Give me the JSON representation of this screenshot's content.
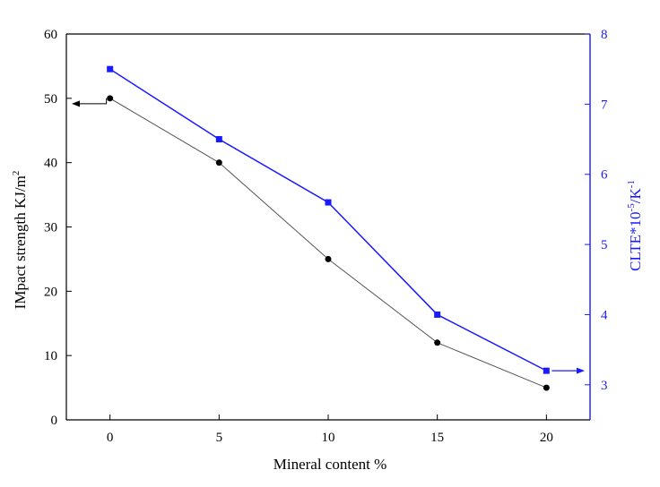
{
  "chart_data": {
    "type": "line",
    "xlabel": "Mineral content %",
    "x_ticks": [
      "0",
      "5",
      "10",
      "15",
      "20"
    ],
    "xlim": [
      -2,
      22
    ],
    "left_axis": {
      "label_main": "IMpact strength KJ/m",
      "label_sup": "2",
      "ylim": [
        0,
        60
      ],
      "ticks": [
        0,
        10,
        20,
        30,
        40,
        50,
        60
      ]
    },
    "right_axis": {
      "label_main": "CLTE*10",
      "label_sup1": "-5",
      "label_mid": "/K",
      "label_sup2": "-1",
      "ylim": [
        2.5,
        8
      ],
      "ticks": [
        3,
        4,
        5,
        6,
        7,
        8
      ]
    },
    "series": [
      {
        "axis": "left",
        "x": [
          0,
          5,
          10,
          15,
          20
        ],
        "values": [
          50,
          40,
          25,
          12,
          5
        ],
        "color": "#555555",
        "marker_color": "#000000",
        "marker": "circle"
      },
      {
        "axis": "right",
        "x": [
          0,
          5,
          10,
          15,
          20
        ],
        "values": [
          7.5,
          6.5,
          5.6,
          4.0,
          3.2
        ],
        "color": "#1a1aff",
        "marker_color": "#1a1aff",
        "marker": "square"
      }
    ],
    "grid": false
  }
}
